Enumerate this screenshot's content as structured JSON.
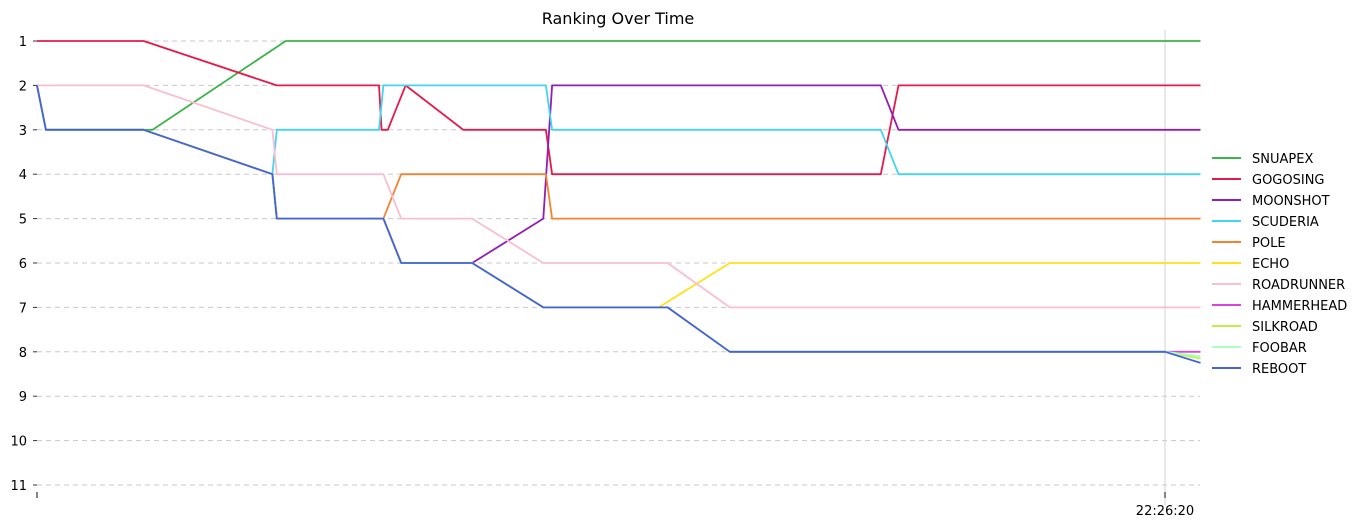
{
  "chart_data": {
    "type": "line",
    "title": "Ranking Over Time",
    "xlabel": "",
    "ylabel": "",
    "y_inverted": true,
    "ylim": [
      1,
      11
    ],
    "yticks": [
      1,
      2,
      3,
      4,
      5,
      6,
      7,
      8,
      9,
      10,
      11
    ],
    "x_tick_labels": [
      "22:26:20"
    ],
    "grid": "horizontal dashed",
    "legend_position": "right",
    "series": [
      {
        "name": "SNUAPEX",
        "color": "#3cb44b",
        "points": [
          [
            0,
            2
          ],
          [
            1,
            3
          ],
          [
            13,
            3
          ],
          [
            28,
            1
          ],
          [
            131,
            1
          ]
        ]
      },
      {
        "name": "GOGOSING",
        "color": "#e6194b",
        "points": [
          [
            0,
            1
          ],
          [
            12,
            1
          ],
          [
            27,
            2
          ],
          [
            38.5,
            2
          ],
          [
            38.8,
            3
          ],
          [
            39.5,
            3
          ],
          [
            41.5,
            2
          ],
          [
            48,
            3
          ],
          [
            57.3,
            3
          ],
          [
            58,
            4
          ],
          [
            95,
            4
          ],
          [
            97,
            2
          ],
          [
            131,
            2
          ]
        ]
      },
      {
        "name": "MOONSHOT",
        "color": "#911eb4",
        "points": [
          [
            0,
            2
          ],
          [
            1,
            3
          ],
          [
            12,
            3
          ],
          [
            26.5,
            4
          ],
          [
            27,
            5
          ],
          [
            39,
            5
          ],
          [
            41,
            6
          ],
          [
            49,
            6
          ],
          [
            57,
            5
          ],
          [
            58,
            2
          ],
          [
            95,
            2
          ],
          [
            97,
            3
          ],
          [
            131,
            3
          ]
        ]
      },
      {
        "name": "SCUDERIA",
        "color": "#42d4f4",
        "points": [
          [
            0,
            2
          ],
          [
            1,
            3
          ],
          [
            12,
            3
          ],
          [
            26.5,
            4
          ],
          [
            27,
            3
          ],
          [
            38.5,
            3
          ],
          [
            39,
            2
          ],
          [
            57.3,
            2
          ],
          [
            58,
            3
          ],
          [
            95,
            3
          ],
          [
            97,
            4
          ],
          [
            131,
            4
          ]
        ]
      },
      {
        "name": "POLE",
        "color": "#f58231",
        "points": [
          [
            0,
            2
          ],
          [
            1,
            3
          ],
          [
            12,
            3
          ],
          [
            26.5,
            4
          ],
          [
            27,
            5
          ],
          [
            39,
            5
          ],
          [
            41,
            4
          ],
          [
            57.3,
            4
          ],
          [
            58,
            5
          ],
          [
            131,
            5
          ]
        ]
      },
      {
        "name": "ECHO",
        "color": "#ffe119",
        "points": [
          [
            0,
            2
          ],
          [
            1,
            3
          ],
          [
            12,
            3
          ],
          [
            26.5,
            4
          ],
          [
            27,
            5
          ],
          [
            39,
            5
          ],
          [
            41,
            6
          ],
          [
            49,
            6
          ],
          [
            57,
            7
          ],
          [
            70,
            7
          ],
          [
            78,
            6
          ],
          [
            131,
            6
          ]
        ]
      },
      {
        "name": "ROADRUNNER",
        "color": "#fabed4",
        "points": [
          [
            0,
            2
          ],
          [
            12,
            2
          ],
          [
            26.5,
            3
          ],
          [
            27,
            4
          ],
          [
            39,
            4
          ],
          [
            41,
            5
          ],
          [
            49,
            5
          ],
          [
            57,
            6
          ],
          [
            71,
            6
          ],
          [
            78,
            7
          ],
          [
            131,
            7
          ]
        ]
      },
      {
        "name": "HAMMERHEAD",
        "color": "#dd44dd",
        "points": [
          [
            0,
            2
          ],
          [
            1,
            3
          ],
          [
            12,
            3
          ],
          [
            26.5,
            4
          ],
          [
            27,
            5
          ],
          [
            39,
            5
          ],
          [
            41,
            6
          ],
          [
            49,
            6
          ],
          [
            57,
            7
          ],
          [
            71,
            7
          ],
          [
            78,
            8
          ],
          [
            131,
            8
          ]
        ]
      },
      {
        "name": "SILKROAD",
        "color": "#bfef45",
        "points": [
          [
            0,
            2
          ],
          [
            1,
            3
          ],
          [
            12,
            3
          ],
          [
            26.5,
            4
          ],
          [
            27,
            5
          ],
          [
            39,
            5
          ],
          [
            41,
            6
          ],
          [
            49,
            6
          ],
          [
            57,
            7
          ],
          [
            71,
            7
          ],
          [
            78,
            8
          ],
          [
            127,
            8
          ],
          [
            131,
            8.15
          ]
        ]
      },
      {
        "name": "FOOBAR",
        "color": "#aaffc3",
        "points": [
          [
            0,
            2
          ],
          [
            1,
            3
          ],
          [
            12,
            3
          ],
          [
            26.5,
            4
          ],
          [
            27,
            5
          ],
          [
            39,
            5
          ],
          [
            41,
            6
          ],
          [
            49,
            6
          ],
          [
            57,
            7
          ],
          [
            71,
            7
          ],
          [
            78,
            8
          ],
          [
            127,
            8
          ],
          [
            131,
            8.1
          ]
        ]
      },
      {
        "name": "REBOOT",
        "color": "#4363d8",
        "points": [
          [
            0,
            2
          ],
          [
            1,
            3
          ],
          [
            12,
            3
          ],
          [
            26.5,
            4
          ],
          [
            27,
            5
          ],
          [
            39,
            5
          ],
          [
            41,
            6
          ],
          [
            49,
            6
          ],
          [
            57,
            7
          ],
          [
            71,
            7
          ],
          [
            78,
            8
          ],
          [
            127,
            8
          ],
          [
            131,
            8.25
          ]
        ]
      }
    ]
  }
}
